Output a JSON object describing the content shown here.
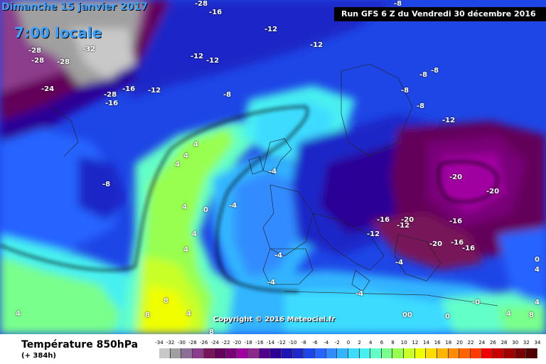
{
  "header": {
    "date": "Dimanche 15 janvier 2017",
    "time": "7:00 locale",
    "run": "Run GFS 6 Z du Vendredi 30 décembre 2016"
  },
  "copyright": "Copyright © 2016 Meteociel.fr",
  "footer": {
    "field_title": "Température 850hPa",
    "lead_time": "(+ 384h)"
  },
  "legend": {
    "ticks": [
      "-34",
      "-32",
      "-30",
      "-28",
      "-26",
      "-24",
      "-22",
      "-20",
      "-18",
      "-16",
      "-14",
      "-12",
      "-10",
      "-8",
      "-6",
      "-4",
      "-2",
      "0",
      "2",
      "4",
      "6",
      "8",
      "10",
      "12",
      "14",
      "16",
      "18",
      "20",
      "22",
      "24",
      "26",
      "28",
      "30",
      "32",
      "34"
    ],
    "colors": [
      "#c8c8c8",
      "#a0a0a0",
      "#8c6e96",
      "#8c3c8c",
      "#78145a",
      "#64005a",
      "#780078",
      "#a000a0",
      "#8c288c",
      "#50008c",
      "#2a0096",
      "#1e14b4",
      "#1e28c8",
      "#1e46e6",
      "#2864ff",
      "#328cff",
      "#32b4ff",
      "#3cdcff",
      "#46f0f0",
      "#64ffc8",
      "#78ff8c",
      "#96ff50",
      "#c8ff28",
      "#f0ff00",
      "#ffdc00",
      "#ffb400",
      "#ff8c00",
      "#ff6400",
      "#ff3c00",
      "#f00000",
      "#c80000",
      "#a00000",
      "#780000",
      "#500000"
    ]
  },
  "map_labels": [
    {
      "text": "-28"
    },
    {
      "text": "-16"
    },
    {
      "text": "-12"
    },
    {
      "text": "-8"
    },
    {
      "text": "-28"
    },
    {
      "text": "-32"
    },
    {
      "text": "-28"
    },
    {
      "text": "-28"
    },
    {
      "text": "-12"
    },
    {
      "text": "-12"
    },
    {
      "text": "-12"
    },
    {
      "text": "-8"
    },
    {
      "text": "-8"
    },
    {
      "text": "-24"
    },
    {
      "text": "-28"
    },
    {
      "text": "-16"
    },
    {
      "text": "-12"
    },
    {
      "text": "-16"
    },
    {
      "text": "-8"
    },
    {
      "text": "-8"
    },
    {
      "text": "-8"
    },
    {
      "text": "-12"
    },
    {
      "text": "4"
    },
    {
      "text": "4"
    },
    {
      "text": "-4"
    },
    {
      "text": "4"
    },
    {
      "text": "-8"
    },
    {
      "text": "-20"
    },
    {
      "text": "-20"
    },
    {
      "text": "4"
    },
    {
      "text": "0"
    },
    {
      "text": "-4"
    },
    {
      "text": "4"
    },
    {
      "text": "-16"
    },
    {
      "text": "-20"
    },
    {
      "text": "-12"
    },
    {
      "text": "-12"
    },
    {
      "text": "-16"
    },
    {
      "text": "-20"
    },
    {
      "text": "-16"
    },
    {
      "text": "-16"
    },
    {
      "text": "4"
    },
    {
      "text": "-4"
    },
    {
      "text": "-4"
    },
    {
      "text": "-4"
    },
    {
      "text": "-4"
    },
    {
      "text": "0"
    },
    {
      "text": "4"
    },
    {
      "text": "8"
    },
    {
      "text": "4"
    },
    {
      "text": "8"
    },
    {
      "text": "00"
    },
    {
      "text": "0"
    },
    {
      "text": "-0"
    },
    {
      "text": "4"
    },
    {
      "text": "8"
    },
    {
      "text": "4"
    },
    {
      "text": "8"
    },
    {
      "text": "4"
    }
  ]
}
